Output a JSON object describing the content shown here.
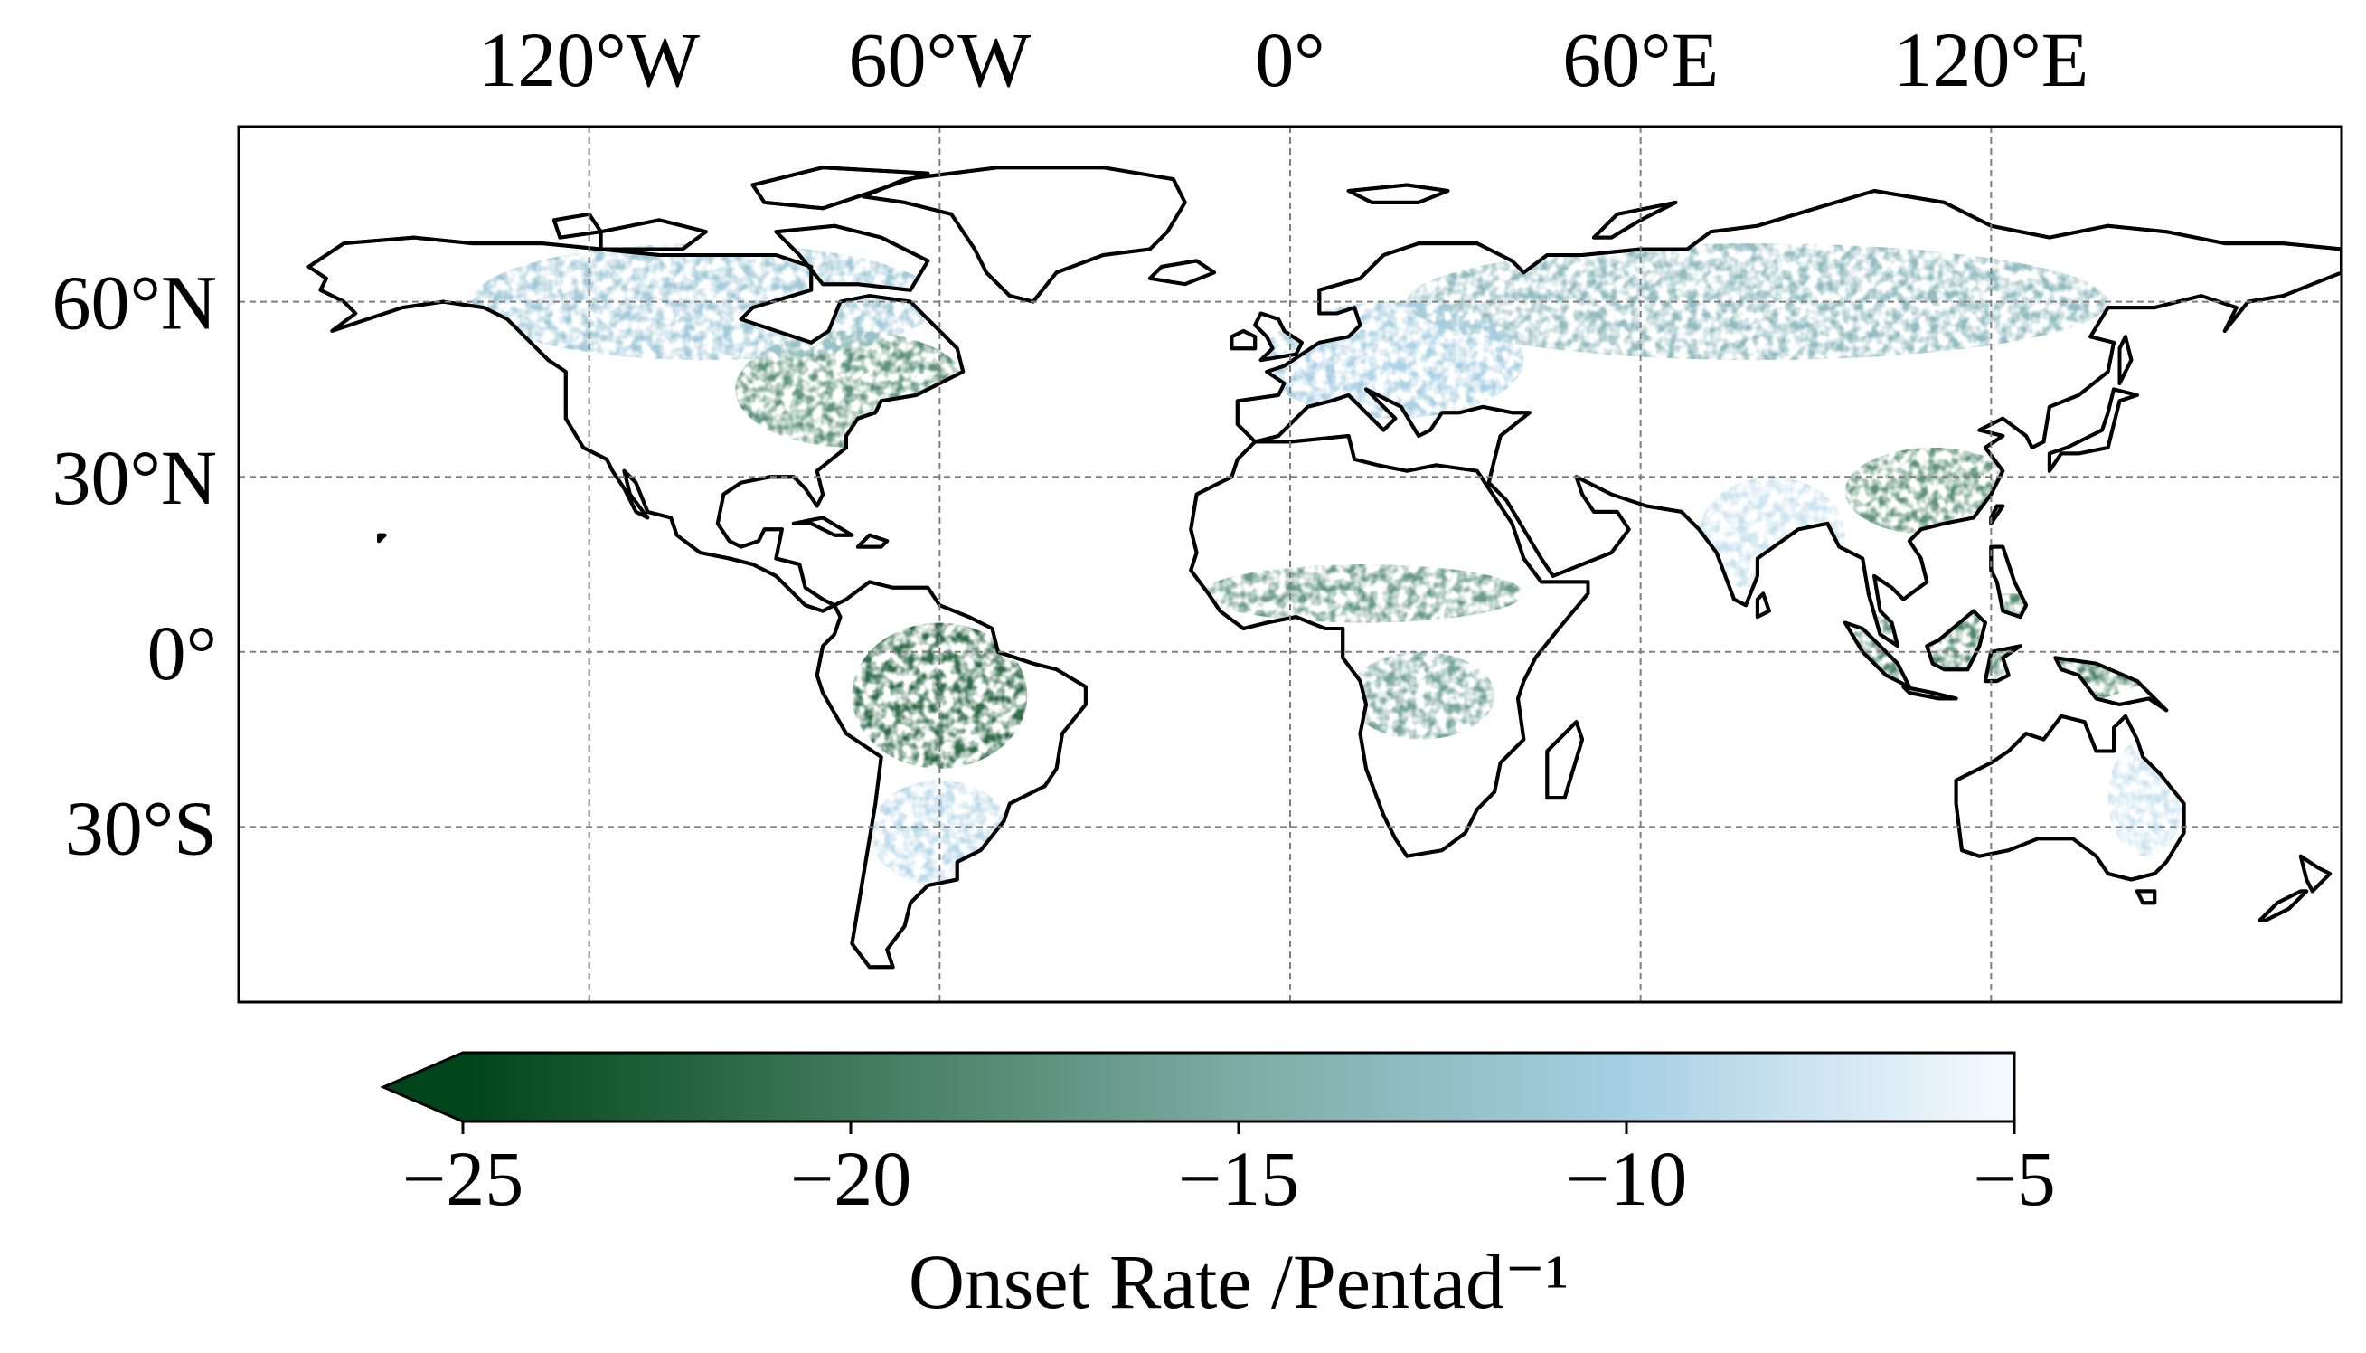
{
  "map": {
    "projection": "PlateCarree",
    "extent": {
      "lon": [
        -180,
        180
      ],
      "lat": [
        -60,
        90
      ]
    },
    "gridlines": "dashed",
    "x_ticks": [
      {
        "lon": -120,
        "label": "120°W"
      },
      {
        "lon": -60,
        "label": "60°W"
      },
      {
        "lon": 0,
        "label": "0°"
      },
      {
        "lon": 60,
        "label": "60°E"
      },
      {
        "lon": 120,
        "label": "120°E"
      }
    ],
    "y_ticks": [
      {
        "lat": 60,
        "label": "60°N"
      },
      {
        "lat": 30,
        "label": "30°N"
      },
      {
        "lat": 0,
        "label": "0°"
      },
      {
        "lat": -30,
        "label": "30°S"
      }
    ],
    "coastline_color": "#000000",
    "land_fill": "#ffffff"
  },
  "colorbar": {
    "orientation": "horizontal",
    "extend": "min",
    "range": [
      -25,
      -5
    ],
    "ticks": [
      {
        "value": -25,
        "label": "−25"
      },
      {
        "value": -20,
        "label": "−20"
      },
      {
        "value": -15,
        "label": "−15"
      },
      {
        "value": -10,
        "label": "−10"
      },
      {
        "value": -5,
        "label": "−5"
      }
    ],
    "label": "Onset Rate /Pentad⁻¹",
    "colormap": [
      {
        "value": -25,
        "color": "#00441b"
      },
      {
        "value": -20,
        "color": "#3f7a5a"
      },
      {
        "value": -15,
        "color": "#7eaba5"
      },
      {
        "value": -10,
        "color": "#a7cfe3"
      },
      {
        "value": -5,
        "color": "#f7fbff"
      }
    ]
  },
  "regions": [
    {
      "name": "eastern-north-america",
      "lon": [
        -95,
        -55
      ],
      "lat": [
        35,
        55
      ],
      "value": -18
    },
    {
      "name": "boreal-canada",
      "lon": [
        -140,
        -60
      ],
      "lat": [
        50,
        70
      ],
      "value": -11
    },
    {
      "name": "amazon",
      "lon": [
        -75,
        -45
      ],
      "lat": [
        -20,
        5
      ],
      "value": -22
    },
    {
      "name": "west-africa-sahel",
      "lon": [
        -15,
        40
      ],
      "lat": [
        5,
        15
      ],
      "value": -17
    },
    {
      "name": "central-africa",
      "lon": [
        10,
        35
      ],
      "lat": [
        -15,
        0
      ],
      "value": -16
    },
    {
      "name": "boreal-eurasia",
      "lon": [
        20,
        140
      ],
      "lat": [
        50,
        70
      ],
      "value": -13
    },
    {
      "name": "east-asia",
      "lon": [
        95,
        125
      ],
      "lat": [
        20,
        35
      ],
      "value": -18
    },
    {
      "name": "southeast-asia",
      "lon": [
        95,
        150
      ],
      "lat": [
        -10,
        10
      ],
      "value": -19
    },
    {
      "name": "europe",
      "lon": [
        -5,
        40
      ],
      "lat": [
        40,
        60
      ],
      "value": -10
    },
    {
      "name": "south-asia",
      "lon": [
        70,
        95
      ],
      "lat": [
        10,
        30
      ],
      "value": -8
    },
    {
      "name": "australia-east",
      "lon": [
        140,
        153
      ],
      "lat": [
        -35,
        -15
      ],
      "value": -8
    },
    {
      "name": "southern-south-america",
      "lon": [
        -72,
        -48
      ],
      "lat": [
        -40,
        -22
      ],
      "value": -9
    }
  ]
}
